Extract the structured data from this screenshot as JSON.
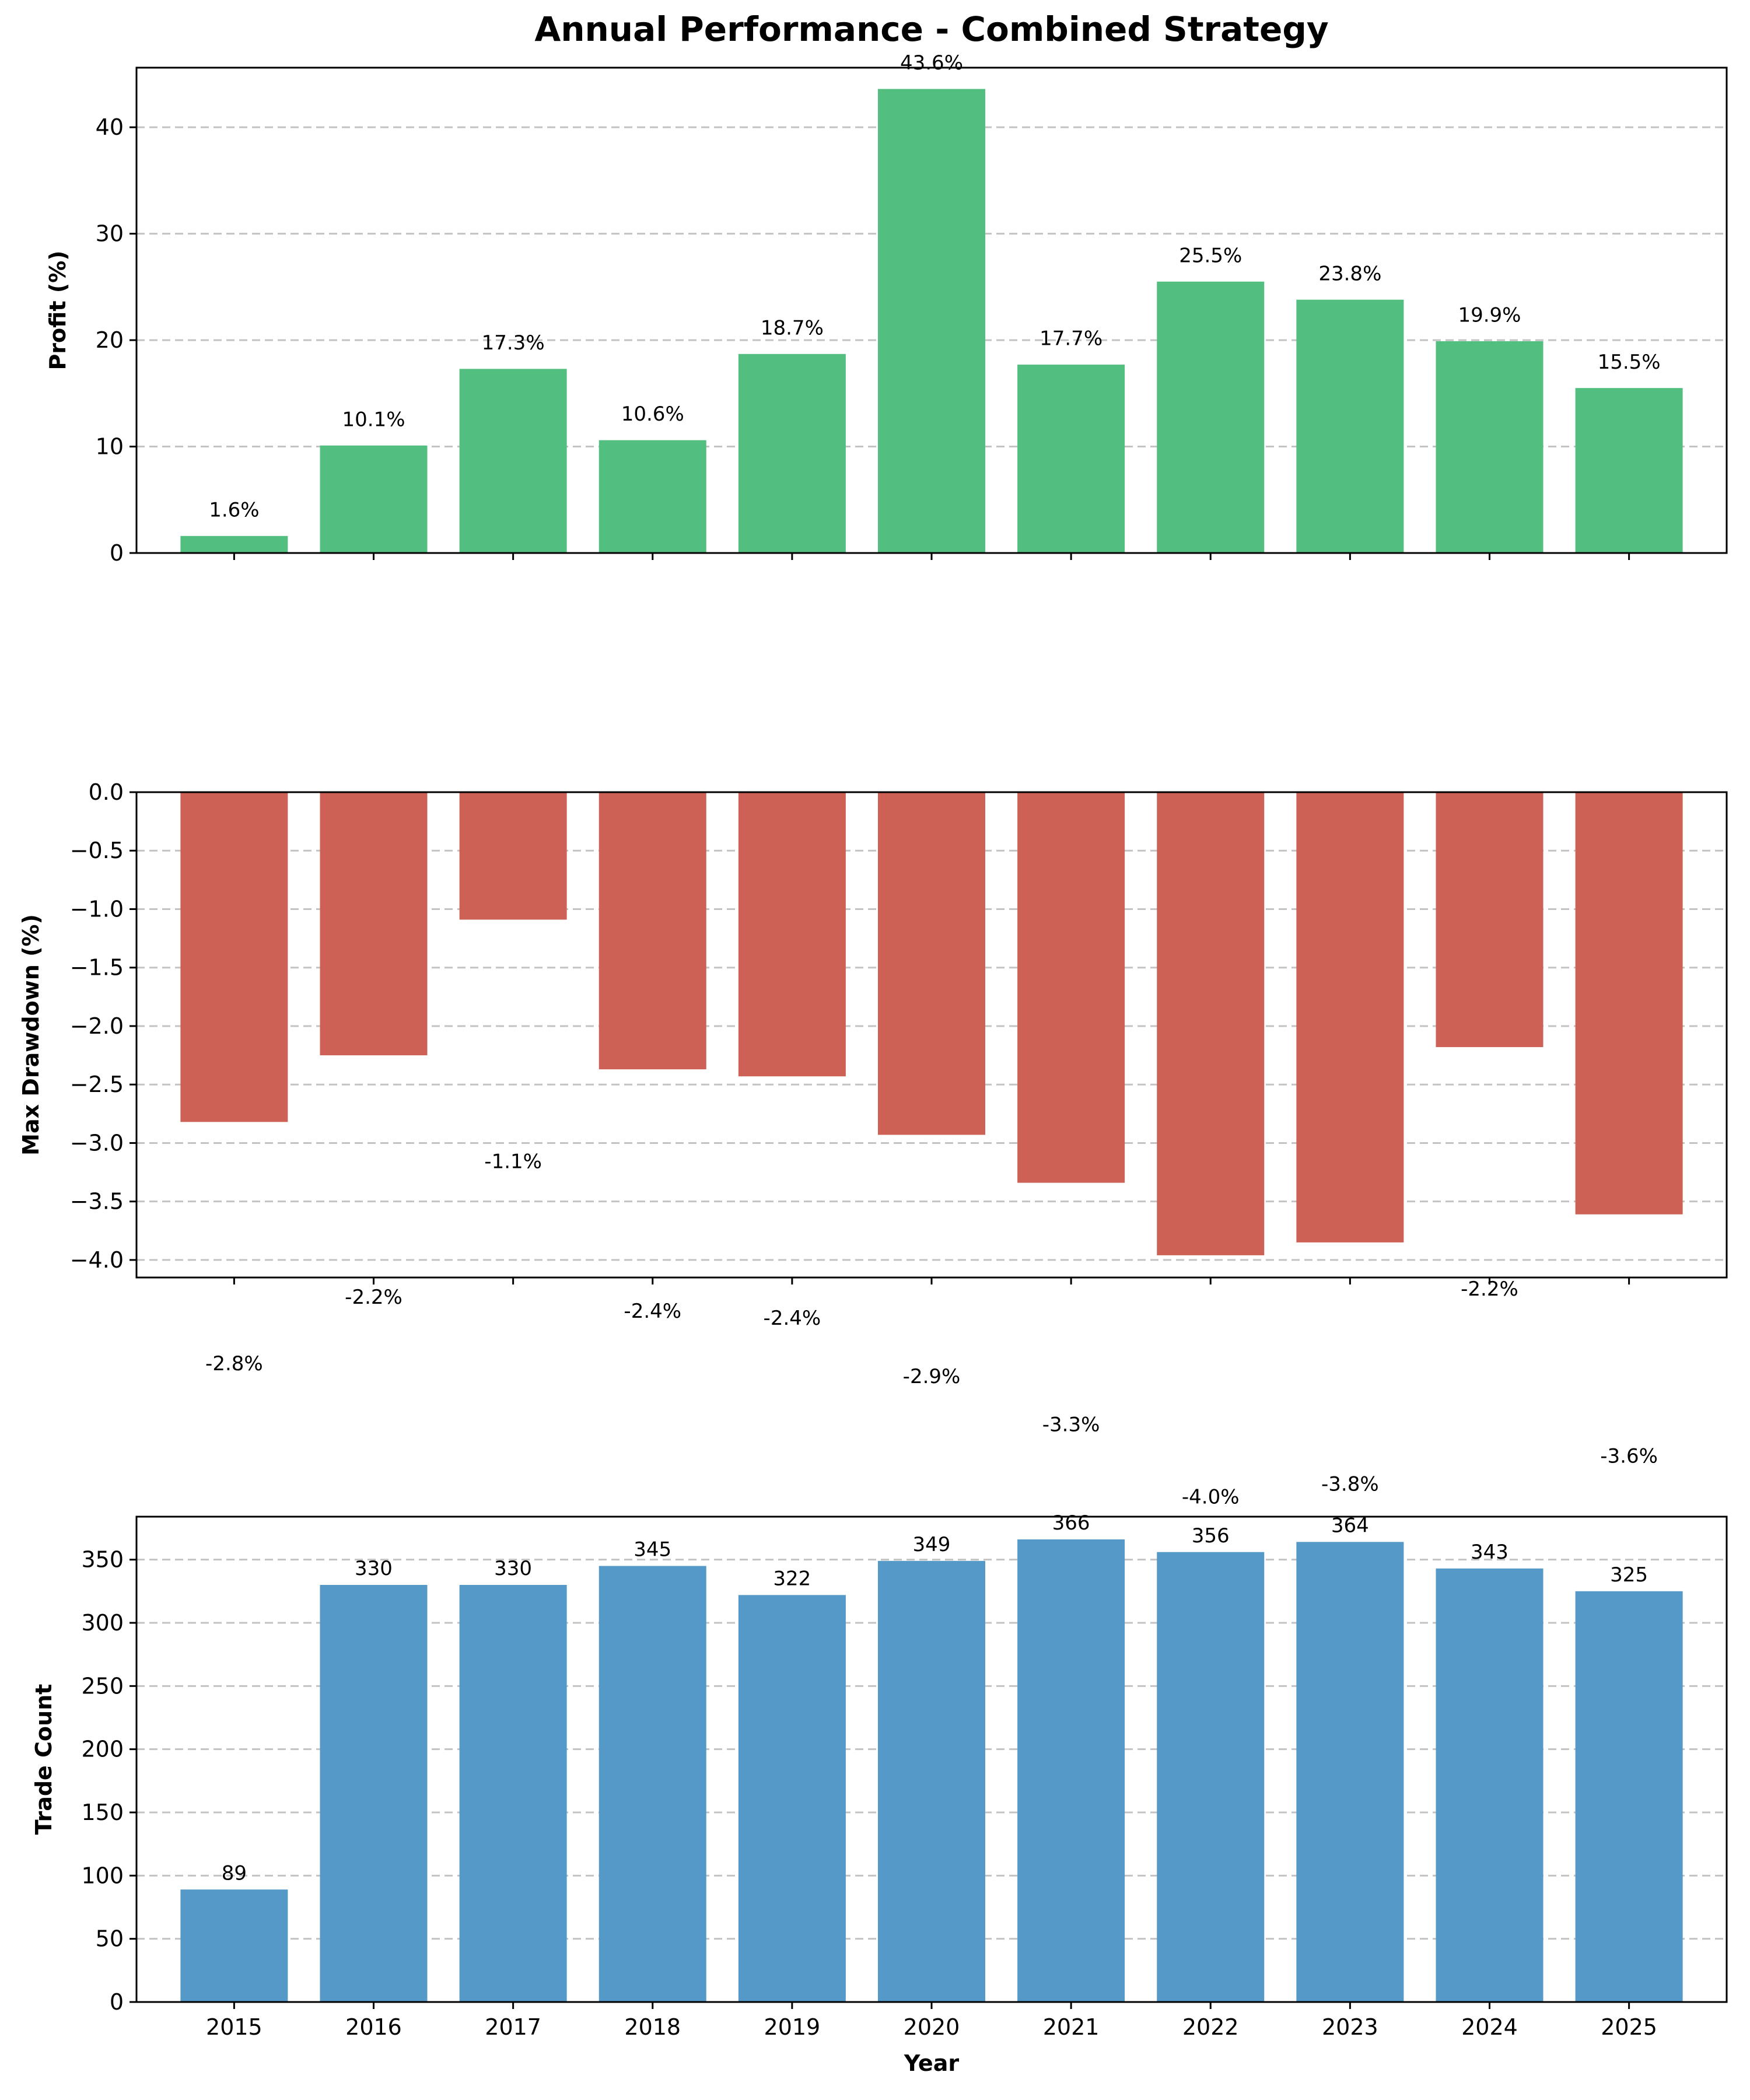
{
  "figure": {
    "title": "Annual Performance - Combined Strategy"
  },
  "chart_data": [
    {
      "type": "bar",
      "ylabel": "Profit (%)",
      "xlabel": "",
      "categories": [
        "2015",
        "2016",
        "2017",
        "2018",
        "2019",
        "2020",
        "2021",
        "2022",
        "2023",
        "2024",
        "2025"
      ],
      "values": [
        1.6,
        10.1,
        17.3,
        10.6,
        18.7,
        43.6,
        17.7,
        25.5,
        23.8,
        19.9,
        15.5
      ],
      "labels": [
        "1.6%",
        "10.1%",
        "17.3%",
        "10.6%",
        "18.7%",
        "43.6%",
        "17.7%",
        "25.5%",
        "23.8%",
        "19.9%",
        "15.5%"
      ],
      "ylim": [
        0,
        45.6
      ],
      "yticks": [
        0,
        10,
        20,
        30,
        40
      ],
      "ytick_labels": [
        "0",
        "10",
        "20",
        "30",
        "40"
      ],
      "show_xtick_labels": false,
      "color": "#52be80",
      "grid": "y",
      "label_offset": 1.5
    },
    {
      "type": "bar",
      "ylabel": "Max Drawdown (%)",
      "xlabel": "",
      "categories": [
        "2015",
        "2016",
        "2017",
        "2018",
        "2019",
        "2020",
        "2021",
        "2022",
        "2023",
        "2024",
        "2025"
      ],
      "values": [
        -2.82,
        -2.25,
        -1.09,
        -2.37,
        -2.43,
        -2.93,
        -3.34,
        -3.96,
        -3.85,
        -2.18,
        -3.61
      ],
      "labels": [
        "-2.8%",
        "-2.2%",
        "-1.1%",
        "-2.4%",
        "-2.4%",
        "-2.9%",
        "-3.3%",
        "-4.0%",
        "-3.8%",
        "-2.2%",
        "-3.6%"
      ],
      "ylim": [
        -4.15,
        0
      ],
      "yticks": [
        0,
        -0.5,
        -1,
        -1.5,
        -2,
        -2.5,
        -3,
        -3.5,
        -4
      ],
      "ytick_labels": [
        "0.0",
        "−0.5",
        "−1.0",
        "−1.5",
        "−2.0",
        "−2.5",
        "−3.0",
        "−3.5",
        "−4.0"
      ],
      "show_xtick_labels": false,
      "color": "#cd6155",
      "grid": "y",
      "label_offset": -2.0
    },
    {
      "type": "bar",
      "ylabel": "Trade Count",
      "xlabel": "Year",
      "categories": [
        "2015",
        "2016",
        "2017",
        "2018",
        "2019",
        "2020",
        "2021",
        "2022",
        "2023",
        "2024",
        "2025"
      ],
      "values": [
        89,
        330,
        330,
        345,
        322,
        349,
        366,
        356,
        364,
        343,
        325
      ],
      "labels": [
        "89",
        "330",
        "330",
        "345",
        "322",
        "349",
        "366",
        "356",
        "364",
        "343",
        "325"
      ],
      "ylim": [
        0,
        384
      ],
      "yticks": [
        0,
        50,
        100,
        150,
        200,
        250,
        300,
        350
      ],
      "ytick_labels": [
        "0",
        "50",
        "100",
        "150",
        "200",
        "250",
        "300",
        "350"
      ],
      "show_xtick_labels": true,
      "color": "#5499c7",
      "grid": "y",
      "label_offset": 5
    }
  ]
}
